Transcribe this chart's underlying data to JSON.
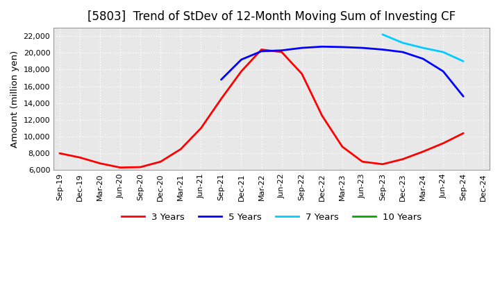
{
  "title": "[5803]  Trend of StDev of 12-Month Moving Sum of Investing CF",
  "ylabel": "Amount (million yen)",
  "background_color": "#FFFFFF",
  "plot_bg_color": "#E8E8E8",
  "grid_color": "#FFFFFF",
  "ylim": [
    6000,
    23000
  ],
  "yticks": [
    6000,
    8000,
    10000,
    12000,
    14000,
    16000,
    18000,
    20000,
    22000
  ],
  "series": {
    "3 Years": {
      "color": "#FF0000",
      "linewidth": 2.0,
      "x": [
        0,
        1,
        2,
        3,
        4,
        5,
        6,
        7,
        8,
        9,
        10,
        11,
        12,
        13,
        14,
        15,
        16,
        17,
        18,
        19,
        20
      ],
      "y": [
        8000,
        7500,
        6800,
        6300,
        6350,
        7000,
        8500,
        11000,
        14500,
        17800,
        20400,
        20100,
        17500,
        12500,
        8800,
        7000,
        6700,
        7300,
        8200,
        9200,
        10400
      ]
    },
    "5 Years": {
      "color": "#0000FF",
      "linewidth": 2.0,
      "x": [
        8,
        9,
        10,
        11,
        12,
        13,
        14,
        15,
        16,
        17,
        18,
        19,
        20
      ],
      "y": [
        16800,
        19200,
        20200,
        20300,
        20600,
        20750,
        20700,
        20600,
        20400,
        20100,
        19300,
        17800,
        14800
      ]
    },
    "7 Years": {
      "color": "#00CCFF",
      "linewidth": 2.0,
      "x": [
        16,
        17,
        18,
        19,
        20
      ],
      "y": [
        22200,
        21200,
        20600,
        20100,
        19000
      ]
    },
    "10 Years": {
      "color": "#00AA00",
      "linewidth": 2.0,
      "x": [],
      "y": []
    }
  },
  "date_labels": [
    "Sep-19",
    "Dec-19",
    "Mar-20",
    "Jun-20",
    "Sep-20",
    "Dec-20",
    "Mar-21",
    "Jun-21",
    "Sep-21",
    "Dec-21",
    "Mar-22",
    "Jun-22",
    "Sep-22",
    "Dec-22",
    "Mar-23",
    "Jun-23",
    "Sep-23",
    "Dec-23",
    "Mar-24",
    "Jun-24",
    "Sep-24",
    "Dec-24"
  ],
  "legend": {
    "labels": [
      "3 Years",
      "5 Years",
      "7 Years",
      "10 Years"
    ],
    "colors": [
      "#FF0000",
      "#0000FF",
      "#00CCFF",
      "#00AA00"
    ],
    "fontsize": 9.5
  },
  "title_fontsize": 12,
  "tick_fontsize": 8,
  "label_fontsize": 9.5
}
